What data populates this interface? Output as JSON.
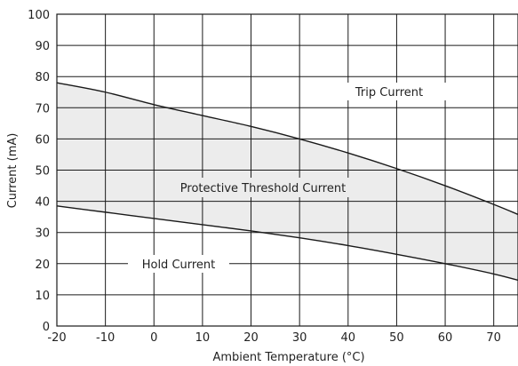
{
  "chart_data": {
    "type": "area",
    "xlabel": "Ambient Temperature (°C)",
    "ylabel": "Current (mA)",
    "xlim": [
      -20,
      75
    ],
    "ylim": [
      0,
      100
    ],
    "x_ticks": [
      -20,
      -10,
      0,
      10,
      20,
      30,
      40,
      50,
      60,
      70
    ],
    "y_ticks": [
      0,
      10,
      20,
      30,
      40,
      50,
      60,
      70,
      80,
      90,
      100
    ],
    "grid": true,
    "series": [
      {
        "name": "Trip Current",
        "x": [
          -20,
          -10,
          0,
          10,
          20,
          30,
          40,
          50,
          60,
          70,
          75
        ],
        "y": [
          78,
          75,
          71,
          67.5,
          64,
          60,
          55.5,
          50.5,
          45,
          39,
          35.8
        ]
      },
      {
        "name": "Hold Current",
        "x": [
          -20,
          -10,
          0,
          10,
          20,
          30,
          40,
          50,
          60,
          70,
          75
        ],
        "y": [
          38.5,
          36.5,
          34.5,
          32.5,
          30.5,
          28.3,
          25.8,
          23,
          20,
          16.7,
          14.7
        ]
      }
    ],
    "shaded_region": "Protective Threshold Current",
    "fill_color": "#ececec",
    "line_color": "#1a1a1a",
    "grid_color": "#1a1a1a",
    "annotations": [
      "Trip Current",
      "Protective Threshold Current",
      "Hold Current"
    ]
  }
}
